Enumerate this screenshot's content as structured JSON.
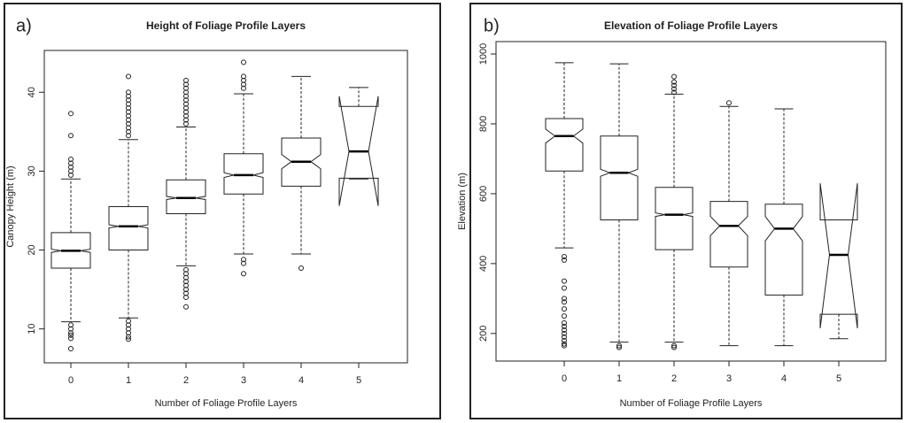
{
  "chart_data": [
    {
      "type": "box",
      "panel_label": "a)",
      "title": "Height of Foliage Profile Layers",
      "xlabel": "Number of Foliage Profile Layers",
      "ylabel": "Canopy Height (m)",
      "categories": [
        "0",
        "1",
        "2",
        "3",
        "4",
        "5"
      ],
      "ylim": [
        5.7,
        45.3
      ],
      "yticks": [
        10,
        20,
        30,
        40
      ],
      "boxes": [
        {
          "whislo": 10.9,
          "q1": 17.7,
          "med": 19.9,
          "q3": 22.2,
          "whishi": 29.0,
          "notch": [
            19.7,
            20.1
          ],
          "outliers": [
            29.5,
            30,
            30.5,
            31,
            31.5,
            34.5,
            37.3,
            10.5,
            10,
            9.5,
            9.2,
            8.8,
            7.5
          ]
        },
        {
          "whislo": 11.4,
          "q1": 20,
          "med": 23,
          "q3": 25.5,
          "whishi": 34,
          "notch": [
            22.8,
            23.2
          ],
          "outliers": [
            34.5,
            35,
            35.5,
            36,
            36.5,
            37,
            37.5,
            38,
            38.5,
            39,
            39.5,
            40,
            42,
            11,
            10.5,
            10,
            9.5,
            9,
            8.7
          ]
        },
        {
          "whislo": 18,
          "q1": 24.6,
          "med": 26.6,
          "q3": 28.9,
          "whishi": 35.6,
          "notch": [
            26.4,
            26.8
          ],
          "outliers": [
            36,
            36.5,
            37,
            37.5,
            38,
            38.5,
            39,
            39.5,
            40,
            40.5,
            41,
            41.5,
            17.5,
            17,
            16.5,
            16,
            15.5,
            15,
            14.5,
            14,
            12.8
          ]
        },
        {
          "whislo": 19.5,
          "q1": 27.1,
          "med": 29.5,
          "q3": 32.2,
          "whishi": 39.8,
          "notch": [
            29.2,
            29.8
          ],
          "outliers": [
            40.5,
            41,
            41.5,
            42,
            43.8,
            18.8,
            18.3,
            17
          ]
        },
        {
          "whislo": 19.5,
          "q1": 28.1,
          "med": 31.2,
          "q3": 34.2,
          "whishi": 42,
          "notch": [
            30.3,
            32.1
          ],
          "outliers": [
            17.7
          ]
        },
        {
          "whislo": 29,
          "q1": 29.1,
          "med": 32.5,
          "q3": 38.2,
          "whishi": 40.6,
          "notch": [
            25.6,
            39.5
          ],
          "outliers": []
        }
      ]
    },
    {
      "type": "box",
      "panel_label": "b)",
      "title": "Elevation of Foliage Profile Layers",
      "xlabel": "Number of Foliage Profile Layers",
      "ylabel": "Elevation (m)",
      "categories": [
        "0",
        "1",
        "2",
        "3",
        "4",
        "5"
      ],
      "ylim": [
        121,
        1035.5
      ],
      "yticks": [
        200,
        400,
        600,
        800,
        1000
      ],
      "boxes": [
        {
          "whislo": 445,
          "q1": 665,
          "med": 765,
          "q3": 815,
          "whishi": 975,
          "notch": [
            745,
            785
          ],
          "outliers": [
            420,
            410,
            350,
            330,
            300,
            290,
            270,
            250,
            230,
            220,
            210,
            200,
            190,
            180,
            170,
            165
          ]
        },
        {
          "whislo": 175,
          "q1": 525,
          "med": 660,
          "q3": 765,
          "whishi": 972,
          "notch": [
            650,
            670
          ],
          "outliers": [
            165,
            160
          ]
        },
        {
          "whislo": 175,
          "q1": 440,
          "med": 540,
          "q3": 618,
          "whishi": 885,
          "notch": [
            535,
            545
          ],
          "outliers": [
            890,
            900,
            910,
            920,
            935,
            165,
            160
          ]
        },
        {
          "whislo": 165,
          "q1": 390,
          "med": 508,
          "q3": 578,
          "whishi": 850,
          "notch": [
            480,
            535
          ],
          "outliers": [
            860
          ]
        },
        {
          "whislo": 165,
          "q1": 310,
          "med": 500,
          "q3": 570,
          "whishi": 843,
          "notch": [
            465,
            535
          ],
          "outliers": []
        },
        {
          "whislo": 185,
          "q1": 255,
          "med": 425,
          "q3": 525,
          "whishi": 525,
          "notch": [
            215,
            630
          ],
          "outliers": []
        }
      ]
    }
  ]
}
